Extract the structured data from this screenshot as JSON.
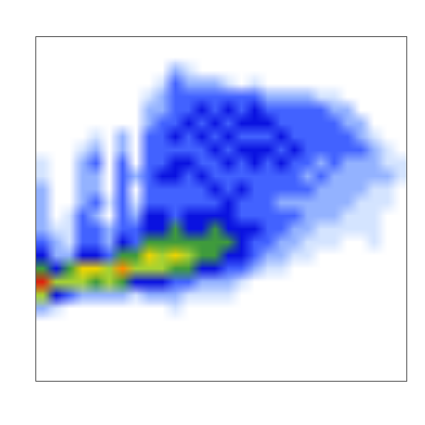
{
  "chart_data": {
    "type": "heatmap",
    "tick_labels": false,
    "grid": false,
    "xlim": [
      0,
      28
    ],
    "ylim": [
      0,
      26
    ],
    "zlim": [
      0,
      9
    ],
    "cells": [
      [
        0,
        0,
        0,
        0,
        0,
        0,
        0,
        0,
        0,
        0,
        0,
        0,
        0,
        0,
        0,
        0,
        0,
        0,
        0,
        0,
        0,
        0,
        0,
        0,
        0,
        0,
        0,
        0
      ],
      [
        0,
        0,
        0,
        0,
        0,
        0,
        0,
        0,
        0,
        0,
        0,
        0,
        0,
        0,
        0,
        0,
        0,
        0,
        0,
        0,
        0,
        0,
        0,
        0,
        0,
        0,
        0,
        0
      ],
      [
        0,
        0,
        0,
        0,
        0,
        0,
        0,
        0,
        0,
        0,
        2,
        1,
        0,
        0,
        0,
        0,
        0,
        0,
        0,
        0,
        0,
        0,
        0,
        0,
        0,
        0,
        0,
        0
      ],
      [
        0,
        0,
        0,
        0,
        0,
        0,
        0,
        0,
        0,
        1,
        3,
        2,
        2,
        2,
        1,
        0,
        1,
        0,
        0,
        0,
        0,
        0,
        0,
        0,
        0,
        0,
        0,
        0
      ],
      [
        0,
        0,
        0,
        0,
        0,
        0,
        0,
        0,
        1,
        2,
        3,
        3,
        3,
        3,
        3,
        3,
        3,
        2,
        2,
        2,
        2,
        1,
        1,
        0,
        0,
        0,
        0,
        0
      ],
      [
        0,
        0,
        0,
        0,
        0,
        0,
        0,
        0,
        2,
        2,
        3,
        3,
        4,
        3,
        4,
        3,
        4,
        3,
        3,
        3,
        3,
        3,
        2,
        2,
        0,
        0,
        0,
        0
      ],
      [
        0,
        0,
        0,
        0,
        0,
        0,
        0,
        0,
        2,
        3,
        3,
        4,
        3,
        4,
        3,
        4,
        4,
        4,
        3,
        3,
        3,
        3,
        3,
        2,
        2,
        0,
        0,
        0
      ],
      [
        0,
        0,
        0,
        0,
        1,
        0,
        2,
        0,
        3,
        3,
        4,
        3,
        4,
        3,
        4,
        3,
        3,
        3,
        4,
        3,
        3,
        3,
        3,
        3,
        2,
        1,
        0,
        0
      ],
      [
        0,
        0,
        0,
        1,
        2,
        0,
        2,
        0,
        3,
        3,
        3,
        3,
        3,
        4,
        3,
        4,
        4,
        4,
        3,
        4,
        3,
        3,
        3,
        3,
        3,
        2,
        1,
        0
      ],
      [
        1,
        0,
        0,
        2,
        3,
        0,
        3,
        0,
        3,
        3,
        4,
        4,
        3,
        3,
        4,
        3,
        4,
        3,
        4,
        3,
        3,
        2,
        3,
        2,
        2,
        2,
        1,
        1
      ],
      [
        1,
        0,
        0,
        2,
        2,
        0,
        3,
        2,
        3,
        4,
        4,
        3,
        4,
        3,
        3,
        3,
        3,
        3,
        3,
        3,
        2,
        3,
        2,
        2,
        2,
        2,
        2,
        1
      ],
      [
        2,
        0,
        0,
        2,
        2,
        0,
        3,
        0,
        3,
        3,
        3,
        3,
        3,
        4,
        3,
        4,
        3,
        3,
        3,
        3,
        3,
        2,
        2,
        2,
        2,
        1,
        1,
        0
      ],
      [
        2,
        0,
        0,
        2,
        3,
        1,
        3,
        1,
        3,
        3,
        3,
        3,
        3,
        3,
        4,
        3,
        3,
        3,
        2,
        2,
        2,
        2,
        2,
        2,
        1,
        1,
        1,
        0
      ],
      [
        2,
        0,
        1,
        3,
        2,
        0,
        3,
        2,
        4,
        4,
        3,
        4,
        4,
        4,
        4,
        3,
        3,
        3,
        3,
        3,
        2,
        2,
        2,
        1,
        1,
        1,
        0,
        0
      ],
      [
        2,
        1,
        1,
        3,
        3,
        2,
        3,
        3,
        4,
        4,
        5,
        4,
        4,
        5,
        4,
        4,
        4,
        3,
        3,
        2,
        2,
        1,
        1,
        1,
        1,
        1,
        0,
        0
      ],
      [
        3,
        2,
        1,
        3,
        3,
        2,
        4,
        3,
        5,
        5,
        5,
        5,
        5,
        5,
        5,
        4,
        3,
        3,
        2,
        2,
        1,
        1,
        1,
        0,
        0,
        1,
        0,
        0
      ],
      [
        4,
        2,
        2,
        4,
        4,
        3,
        5,
        5,
        7,
        6,
        7,
        6,
        5,
        5,
        4,
        4,
        3,
        2,
        2,
        1,
        1,
        0,
        0,
        0,
        0,
        0,
        0,
        0
      ],
      [
        5,
        4,
        5,
        7,
        7,
        6,
        8,
        6,
        6,
        6,
        5,
        5,
        4,
        4,
        3,
        3,
        2,
        1,
        1,
        0,
        0,
        0,
        0,
        0,
        0,
        0,
        0,
        0
      ],
      [
        9,
        6,
        6,
        6,
        5,
        6,
        5,
        4,
        4,
        4,
        3,
        3,
        2,
        2,
        2,
        1,
        0,
        0,
        0,
        0,
        0,
        0,
        0,
        0,
        0,
        0,
        0,
        0
      ],
      [
        6,
        4,
        3,
        2,
        2,
        2,
        2,
        1,
        2,
        2,
        2,
        1,
        1,
        1,
        1,
        0,
        0,
        0,
        0,
        0,
        0,
        0,
        0,
        0,
        0,
        0,
        0,
        0
      ],
      [
        2,
        1,
        0,
        0,
        0,
        0,
        0,
        0,
        0,
        0,
        1,
        0,
        0,
        0,
        0,
        0,
        0,
        0,
        0,
        0,
        0,
        0,
        0,
        0,
        0,
        0,
        0,
        0
      ],
      [
        0,
        0,
        0,
        0,
        0,
        0,
        0,
        0,
        0,
        0,
        0,
        0,
        0,
        0,
        0,
        0,
        0,
        0,
        0,
        0,
        0,
        0,
        0,
        0,
        0,
        0,
        0,
        0
      ],
      [
        0,
        0,
        0,
        0,
        0,
        0,
        0,
        0,
        0,
        0,
        0,
        0,
        0,
        0,
        0,
        0,
        0,
        0,
        0,
        0,
        0,
        0,
        0,
        0,
        0,
        0,
        0,
        0
      ],
      [
        0,
        0,
        0,
        0,
        0,
        0,
        0,
        0,
        0,
        0,
        0,
        0,
        0,
        0,
        0,
        0,
        0,
        0,
        0,
        0,
        0,
        0,
        0,
        0,
        0,
        0,
        0,
        0
      ],
      [
        0,
        0,
        0,
        0,
        0,
        0,
        0,
        0,
        0,
        0,
        0,
        0,
        0,
        0,
        0,
        0,
        0,
        0,
        0,
        0,
        0,
        0,
        0,
        0,
        0,
        0,
        0,
        0
      ],
      [
        0,
        0,
        0,
        0,
        0,
        0,
        0,
        0,
        0,
        0,
        0,
        0,
        0,
        0,
        0,
        0,
        0,
        0,
        0,
        0,
        0,
        0,
        0,
        0,
        0,
        0,
        0,
        0
      ]
    ]
  }
}
